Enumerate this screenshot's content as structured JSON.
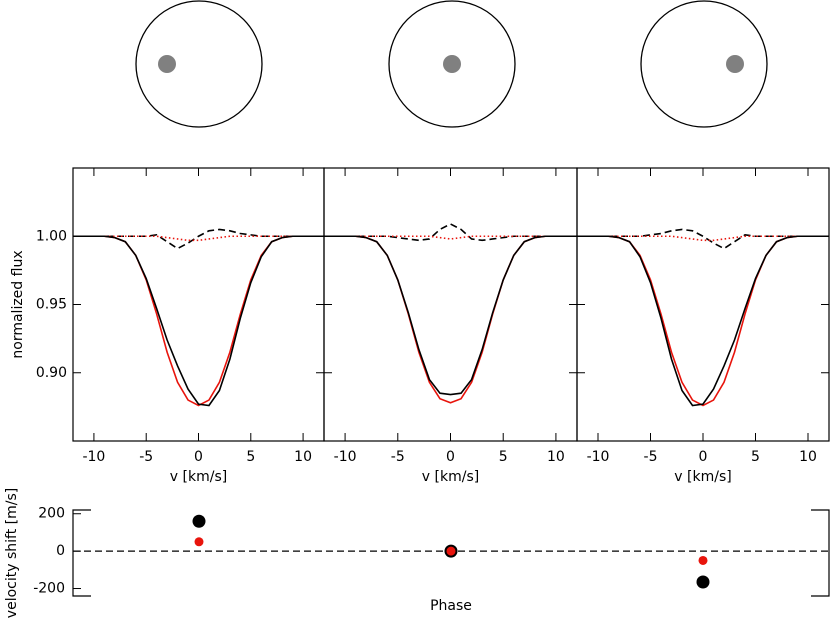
{
  "chart_data": [
    {
      "type": "line",
      "xlabel": "v [km/s]",
      "ylabel": "normalized flux",
      "x": [
        -12,
        -11,
        -10,
        -9,
        -8,
        -7,
        -6,
        -5,
        -4,
        -3,
        -2,
        -1,
        0,
        1,
        2,
        3,
        4,
        5,
        6,
        7,
        8,
        9,
        10,
        11,
        12
      ],
      "xlim": [
        -12,
        12
      ],
      "xticks": [
        -10,
        -5,
        0,
        5,
        10
      ],
      "ylim": [
        0.85,
        1.05
      ],
      "yticks": [
        {
          "value": 0.9,
          "label": "0.90"
        },
        {
          "value": 0.95,
          "label": "0.95"
        },
        {
          "value": 1,
          "label": "1.00"
        }
      ],
      "series": [
        {
          "color": "#000000",
          "style": "dashed",
          "values": [
            1,
            1,
            1,
            1,
            1,
            1,
            1,
            1,
            1.001,
            0.996,
            0.991,
            0.995,
            1.0,
            1.004,
            1.005,
            1.004,
            1.002,
            1.001,
            1,
            1,
            1,
            1,
            1,
            1,
            1
          ]
        },
        {
          "color": "#e8140c",
          "style": "dotted",
          "values": [
            1,
            1,
            1,
            1,
            1,
            1,
            1,
            1,
            1,
            0.999,
            0.998,
            0.997,
            0.997,
            0.998,
            0.999,
            1,
            1,
            1,
            1,
            1,
            1,
            1,
            1,
            1,
            1
          ]
        },
        {
          "color": "#e8140c",
          "style": "solid",
          "values": [
            1,
            1,
            1,
            1,
            0.999,
            0.996,
            0.986,
            0.968,
            0.943,
            0.915,
            0.893,
            0.88,
            0.876,
            0.88,
            0.893,
            0.915,
            0.943,
            0.968,
            0.986,
            0.996,
            0.999,
            1,
            1,
            1,
            1
          ]
        },
        {
          "color": "#000000",
          "style": "solid",
          "values": [
            1,
            1,
            1,
            1,
            0.999,
            0.996,
            0.986,
            0.969,
            0.947,
            0.924,
            0.905,
            0.888,
            0.877,
            0.876,
            0.887,
            0.91,
            0.94,
            0.966,
            0.985,
            0.996,
            0.999,
            1,
            1,
            1,
            1
          ]
        }
      ]
    },
    {
      "type": "line",
      "xlabel": "v [km/s]",
      "x": [
        -12,
        -11,
        -10,
        -9,
        -8,
        -7,
        -6,
        -5,
        -4,
        -3,
        -2,
        -1,
        0,
        1,
        2,
        3,
        4,
        5,
        6,
        7,
        8,
        9,
        10,
        11,
        12
      ],
      "xlim": [
        -12,
        12
      ],
      "xticks": [
        -10,
        -5,
        0,
        5,
        10
      ],
      "ylim": [
        0.85,
        1.05
      ],
      "series": [
        {
          "color": "#000000",
          "style": "dashed",
          "values": [
            1,
            1,
            1,
            1,
            1,
            1,
            1,
            0.999,
            0.998,
            0.997,
            0.998,
            1.005,
            1.009,
            1.005,
            0.998,
            0.997,
            0.998,
            0.999,
            1,
            1,
            1,
            1,
            1,
            1,
            1
          ]
        },
        {
          "color": "#e8140c",
          "style": "dotted",
          "values": [
            1,
            1,
            1,
            1,
            1,
            1,
            1,
            1,
            1,
            1,
            1,
            0.999,
            0.998,
            0.999,
            1,
            1,
            1,
            1,
            1,
            1,
            1,
            1,
            1,
            1,
            1
          ]
        },
        {
          "color": "#e8140c",
          "style": "solid",
          "values": [
            1,
            1,
            1,
            1,
            0.999,
            0.996,
            0.986,
            0.968,
            0.943,
            0.915,
            0.893,
            0.881,
            0.878,
            0.881,
            0.893,
            0.915,
            0.943,
            0.968,
            0.986,
            0.996,
            0.999,
            1,
            1,
            1,
            1
          ]
        },
        {
          "color": "#000000",
          "style": "solid",
          "values": [
            1,
            1,
            1,
            1,
            0.999,
            0.996,
            0.986,
            0.968,
            0.944,
            0.917,
            0.895,
            0.885,
            0.884,
            0.885,
            0.895,
            0.917,
            0.944,
            0.968,
            0.986,
            0.996,
            0.999,
            1,
            1,
            1,
            1
          ]
        }
      ]
    },
    {
      "type": "line",
      "xlabel": "v [km/s]",
      "x": [
        -12,
        -11,
        -10,
        -9,
        -8,
        -7,
        -6,
        -5,
        -4,
        -3,
        -2,
        -1,
        0,
        1,
        2,
        3,
        4,
        5,
        6,
        7,
        8,
        9,
        10,
        11,
        12
      ],
      "xlim": [
        -12,
        12
      ],
      "xticks": [
        -10,
        -5,
        0,
        5,
        10
      ],
      "ylim": [
        0.85,
        1.05
      ],
      "series": [
        {
          "color": "#000000",
          "style": "dashed",
          "values": [
            1,
            1,
            1,
            1,
            1,
            1,
            1,
            1.001,
            1.002,
            1.004,
            1.005,
            1.004,
            1.0,
            0.995,
            0.991,
            0.996,
            1.001,
            1,
            1,
            1,
            1,
            1,
            1,
            1,
            1
          ]
        },
        {
          "color": "#e8140c",
          "style": "dotted",
          "values": [
            1,
            1,
            1,
            1,
            1,
            1,
            1,
            1,
            1,
            1,
            0.999,
            0.998,
            0.997,
            0.997,
            0.998,
            0.999,
            1,
            1,
            1,
            1,
            1,
            1,
            1,
            1,
            1
          ]
        },
        {
          "color": "#e8140c",
          "style": "solid",
          "values": [
            1,
            1,
            1,
            1,
            0.999,
            0.996,
            0.986,
            0.968,
            0.943,
            0.915,
            0.893,
            0.88,
            0.876,
            0.88,
            0.893,
            0.915,
            0.943,
            0.968,
            0.986,
            0.996,
            0.999,
            1,
            1,
            1,
            1
          ]
        },
        {
          "color": "#000000",
          "style": "solid",
          "values": [
            1,
            1,
            1,
            1,
            0.999,
            0.996,
            0.985,
            0.966,
            0.94,
            0.91,
            0.887,
            0.876,
            0.877,
            0.888,
            0.905,
            0.924,
            0.947,
            0.969,
            0.986,
            0.996,
            0.999,
            1,
            1,
            1,
            1
          ]
        }
      ]
    },
    {
      "type": "scatter",
      "xlabel": "Phase",
      "ylabel": "velocity shift [m/s]",
      "xlim": [
        0,
        3
      ],
      "ylim": [
        -240,
        220
      ],
      "yticks": [
        -200,
        0,
        200
      ],
      "hline": 0,
      "series": [
        {
          "color": "#000000",
          "x": [
            0.5,
            1.5,
            2.5
          ],
          "values": [
            160,
            0,
            -165
          ]
        },
        {
          "color": "#e8140c",
          "x": [
            0.5,
            1.5,
            2.5
          ],
          "values": [
            50,
            0,
            -50
          ]
        }
      ]
    }
  ]
}
